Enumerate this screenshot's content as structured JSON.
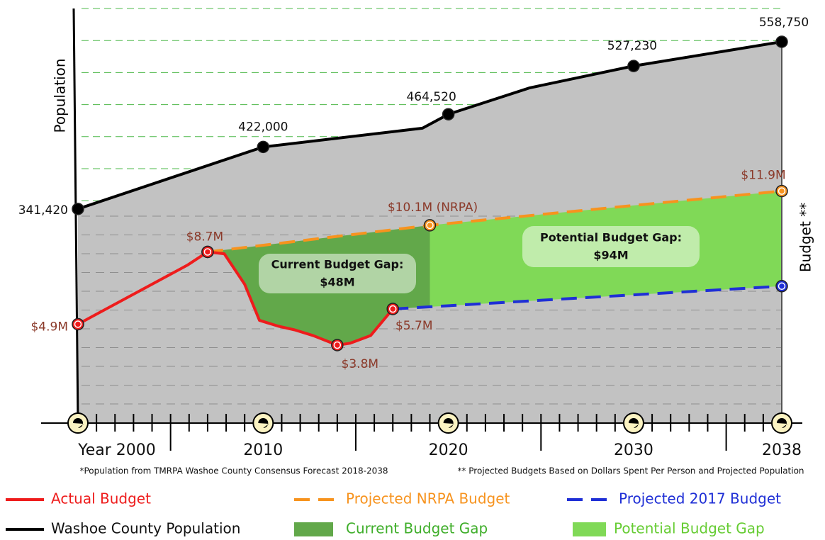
{
  "chart_data": {
    "type": "line",
    "ylabel": "Population",
    "y2label": "Budget **",
    "xlim": [
      2000,
      2038
    ],
    "xticks": [
      {
        "value": 2000,
        "label": "Year 2000"
      },
      2010,
      2020,
      2030,
      2038
    ],
    "ylim": [
      63000,
      602000
    ],
    "y2lim": [
      -0.3,
      21.5
    ],
    "series": [
      {
        "name": "Washoe County Population",
        "color": "#000000",
        "axis": "y",
        "linestyle": "solid",
        "x": [
          2000,
          2010,
          2018.6,
          2020,
          2024.4,
          2030,
          2038
        ],
        "values": [
          341420,
          422000,
          446400,
          464520,
          498900,
          527230,
          558750
        ],
        "value_labels": [
          "341,420",
          "422,000",
          null,
          "464,520",
          null,
          "527,230",
          "558,750"
        ]
      },
      {
        "name": "Projected NRPA Budget",
        "color": "#f7931e",
        "axis": "y2",
        "linestyle": "dashed",
        "x": [
          2007,
          2019,
          2038
        ],
        "values": [
          8.7,
          10.1,
          11.9
        ],
        "value_labels": [
          null,
          "$10.1M (NRPA)",
          "$11.9M"
        ]
      },
      {
        "name": "Projected 2017 Budget",
        "color": "#1f2fd6",
        "axis": "y2",
        "linestyle": "dashed",
        "x": [
          2017,
          2038
        ],
        "values": [
          5.7,
          6.9
        ],
        "value_labels": [
          null,
          null
        ]
      },
      {
        "name": "Actual Budget",
        "color": "#ee1c1c",
        "axis": "y2",
        "linestyle": "solid",
        "x": [
          2000,
          2005.9,
          2007,
          2007.9,
          2009,
          2009.8,
          2010.8,
          2011.7,
          2012.7,
          2014,
          2014.7,
          2015.8,
          2017
        ],
        "values": [
          4.9,
          8.0,
          8.7,
          8.6,
          7.0,
          5.1,
          4.8,
          4.6,
          4.3,
          3.8,
          3.9,
          4.3,
          5.7
        ],
        "value_labels": [
          "$4.9M",
          null,
          "$8.7M",
          null,
          null,
          null,
          null,
          null,
          null,
          "$3.8M",
          null,
          null,
          "$5.7M"
        ]
      }
    ],
    "areas": [
      {
        "name": "Current Budget Gap",
        "color": "#62a84a",
        "label": "Current Budget Gap:",
        "value": 48,
        "value_label": "$48M"
      },
      {
        "name": "Potential Budget Gap",
        "color": "#80d957",
        "label": "Potential Budget Gap:",
        "value": 94,
        "value_label": "$94M"
      }
    ],
    "notes": [
      "*Population from TMRPA Washoe County Consensus Forecast 2018-2038",
      "** Projected Budgets Based on Dollars Spent Per Person and Projected Population"
    ]
  }
}
